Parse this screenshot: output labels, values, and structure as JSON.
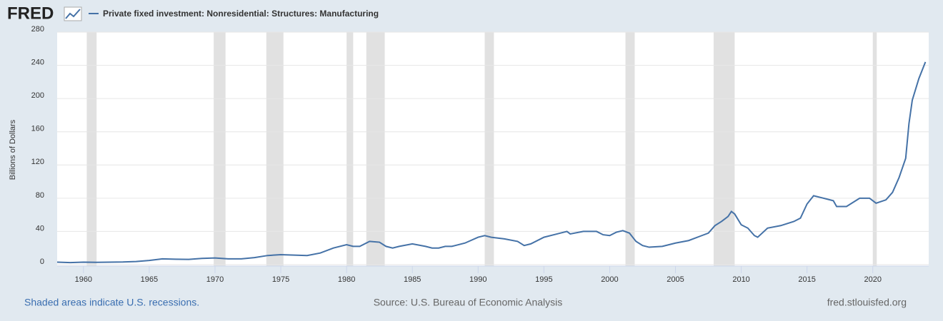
{
  "logo": "FRED",
  "chart_data": {
    "type": "line",
    "y_label": "Billions of Dollars",
    "x": [
      1958,
      1959,
      1960,
      1961,
      1962,
      1963,
      1964,
      1965,
      1966,
      1967,
      1968,
      1969,
      1970,
      1971,
      1972,
      1973,
      1974,
      1975,
      1976,
      1977,
      1978,
      1979,
      1980,
      1980.5,
      1981,
      1981.75,
      1982.5,
      1983,
      1983.5,
      1984,
      1985,
      1986,
      1986.5,
      1987,
      1987.5,
      1988,
      1989,
      1990,
      1990.5,
      1991,
      1992,
      1993,
      1993.5,
      1994,
      1995,
      1996,
      1996.75,
      1997,
      1998,
      1999,
      1999.5,
      2000,
      2000.5,
      2001,
      2001.5,
      2002,
      2002.5,
      2003,
      2004,
      2005,
      2006,
      2007,
      2007.5,
      2008,
      2008.5,
      2009,
      2009.25,
      2009.5,
      2010,
      2010.5,
      2011,
      2011.25,
      2012,
      2013,
      2014,
      2014.5,
      2015,
      2015.5,
      2016,
      2016.5,
      2017,
      2017.25,
      2018,
      2019,
      2019.75,
      2020.25,
      2021,
      2021.5,
      2022,
      2022.5,
      2022.75,
      2023,
      2023.5,
      2024
    ],
    "series": [
      {
        "name": "Private fixed investment: Nonresidential: Structures: Manufacturing",
        "color": "#4572a7",
        "values": [
          3,
          2.5,
          3,
          2.8,
          3,
          3.2,
          3.8,
          5,
          7,
          6.5,
          6.3,
          7.5,
          8,
          7,
          7,
          8.5,
          11,
          12,
          11.5,
          11,
          14,
          20,
          24,
          22,
          22,
          28,
          27,
          22,
          20,
          22,
          25,
          22,
          20,
          20,
          22,
          22,
          26,
          33,
          35,
          33,
          31,
          28,
          23,
          25,
          33,
          37,
          40,
          37,
          40,
          40,
          36,
          35,
          39,
          41,
          38,
          28,
          23,
          21,
          22,
          26,
          29,
          35,
          38,
          47,
          52,
          58,
          64,
          61,
          48,
          44,
          35,
          33,
          44,
          47,
          52,
          56,
          73,
          83,
          81,
          79,
          77,
          70,
          70,
          80,
          80,
          74,
          78,
          87,
          105,
          128,
          170,
          198,
          224,
          244
        ]
      }
    ],
    "recessions": [
      [
        1960.25,
        1961.0
      ],
      [
        1969.9,
        1970.8
      ],
      [
        1973.9,
        1975.2
      ],
      [
        1980.0,
        1980.5
      ],
      [
        1981.5,
        1982.9
      ],
      [
        1990.5,
        1991.2
      ],
      [
        2001.2,
        2001.9
      ],
      [
        2007.9,
        2009.5
      ],
      [
        2020.0,
        2020.3
      ]
    ],
    "xlim": [
      1958,
      2024.25
    ],
    "xticks": [
      1960,
      1965,
      1970,
      1975,
      1980,
      1985,
      1990,
      1995,
      2000,
      2005,
      2010,
      2015,
      2020
    ],
    "ylim": [
      0,
      280
    ],
    "yticks": [
      0,
      40,
      80,
      120,
      160,
      200,
      240,
      280
    ],
    "grid": true,
    "recession_note": "Shaded areas indicate U.S. recessions.",
    "source": "Source: U.S. Bureau of Economic Analysis",
    "site": "fred.stlouisfed.org"
  }
}
